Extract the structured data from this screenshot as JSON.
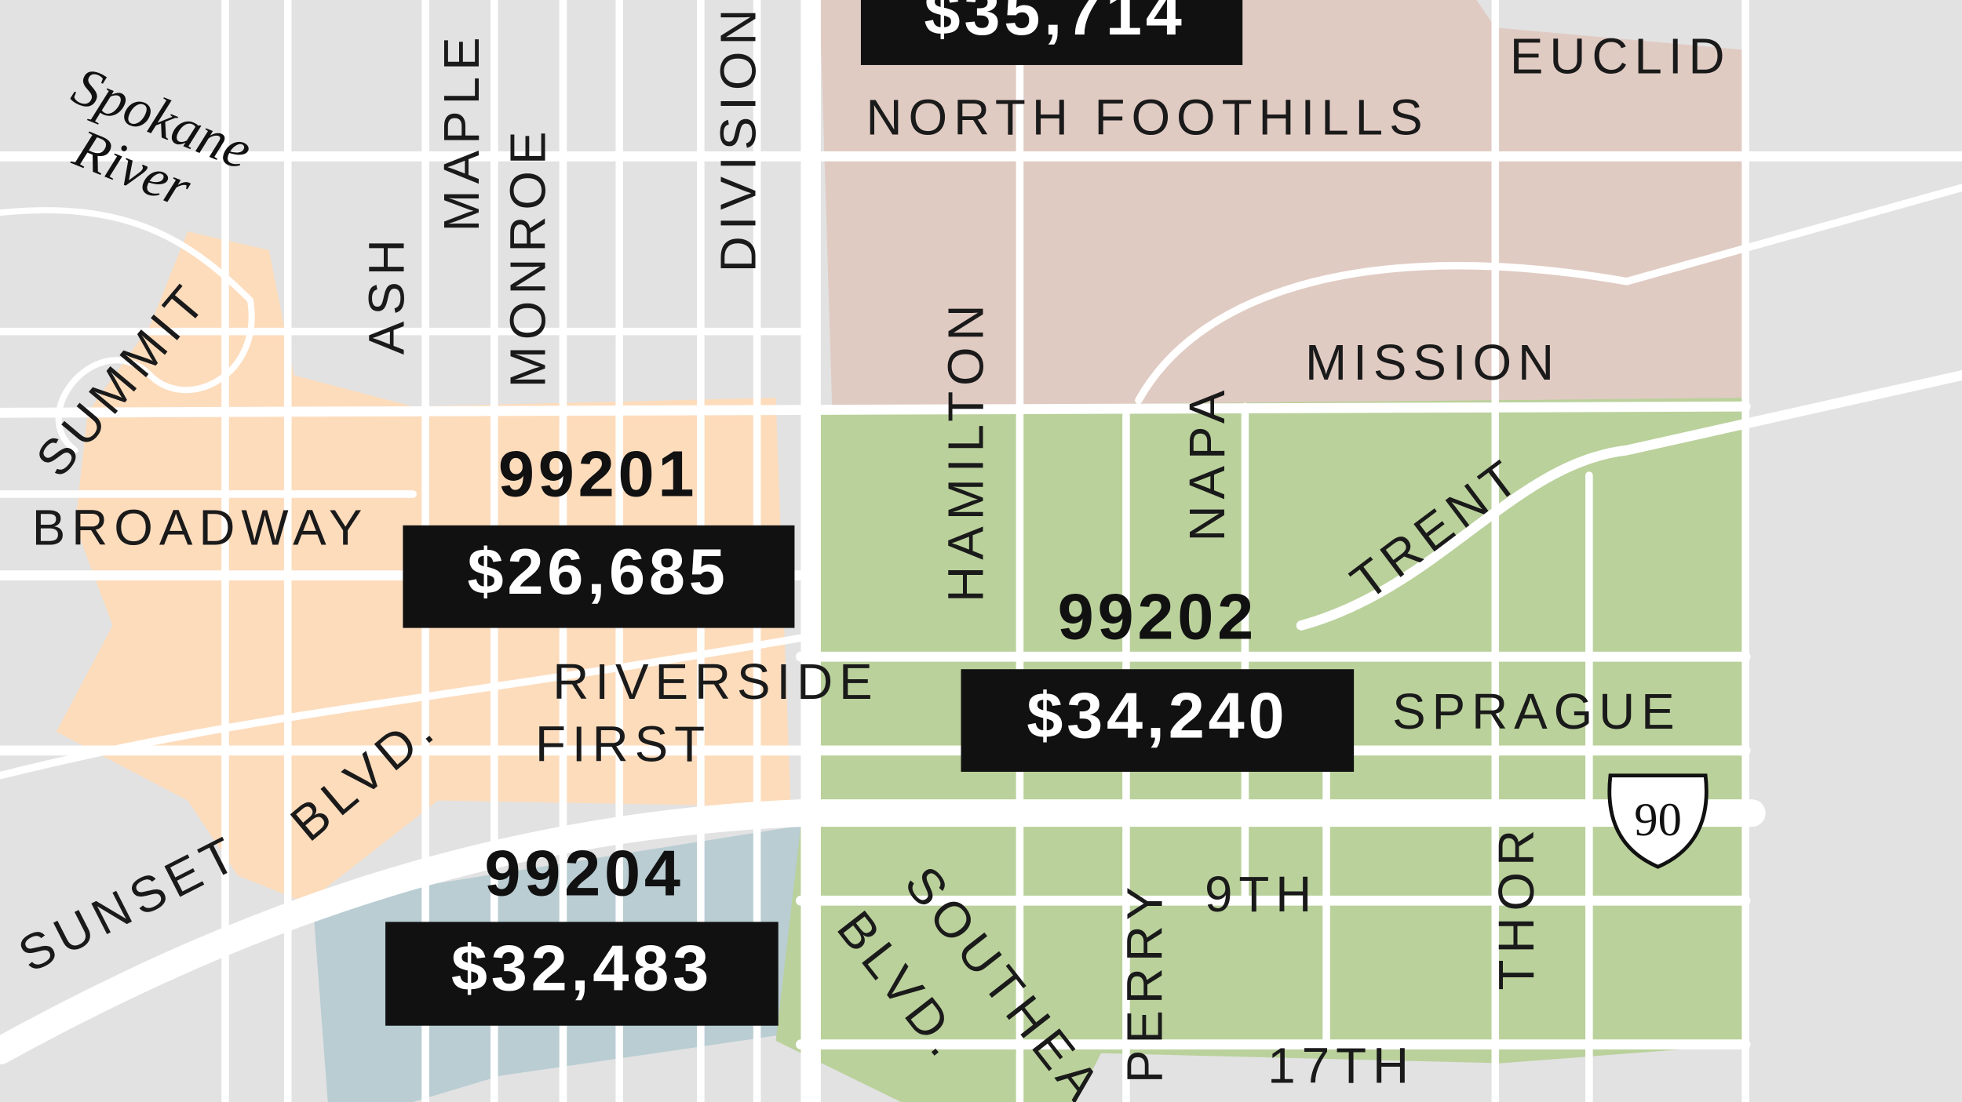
{
  "zip_areas": [
    {
      "zip": "99201",
      "income": "$26,685"
    },
    {
      "zip": "99202",
      "income": "$34,240"
    },
    {
      "zip": "99204",
      "income": "$32,483"
    },
    {
      "income": "$35,714"
    }
  ],
  "water": {
    "line1": "Spokane",
    "line2": "River"
  },
  "highway": "90",
  "streets": [
    "ASH",
    "MAPLE",
    "MONROE",
    "DIVISION",
    "HAMILTON",
    "NAPA",
    "PERRY",
    "THOR",
    "SUMMIT",
    "BROADWAY",
    "RIVERSIDE",
    "FIRST",
    "SPRAGUE",
    "SUNSET",
    "BLVD.",
    "TRENT",
    "MISSION",
    "EUCLID",
    "NORTH FOOTHILLS",
    "9TH",
    "17TH",
    "SOUTHEA",
    "BLVD."
  ]
}
